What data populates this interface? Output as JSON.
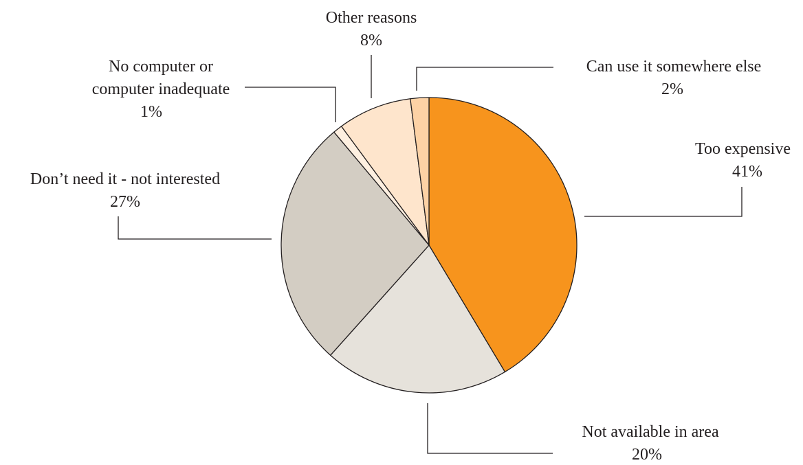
{
  "chart_data": {
    "type": "pie",
    "slices": [
      {
        "label": "Too expensive",
        "value": 41,
        "value_label": "41%",
        "color": "#f7941d"
      },
      {
        "label": "Not available in area",
        "value": 20,
        "value_label": "20%",
        "color": "#e6e2db"
      },
      {
        "label": "Don’t need it - not interested",
        "value": 27,
        "value_label": "27%",
        "color": "#d3cdc3"
      },
      {
        "label": "No computer or computer inadequate",
        "label_lines": [
          "No computer or",
          "computer inadequate"
        ],
        "value": 1,
        "value_label": "1%",
        "color": "#fdefe0"
      },
      {
        "label": "Other reasons",
        "value": 8,
        "value_label": "8%",
        "color": "#fee5cc"
      },
      {
        "label": "Can use it somewhere else",
        "value": 2,
        "value_label": "2%",
        "color": "#fdd2a5"
      }
    ],
    "start_angle_deg": 0,
    "direction": "clockwise",
    "legend": "none"
  }
}
